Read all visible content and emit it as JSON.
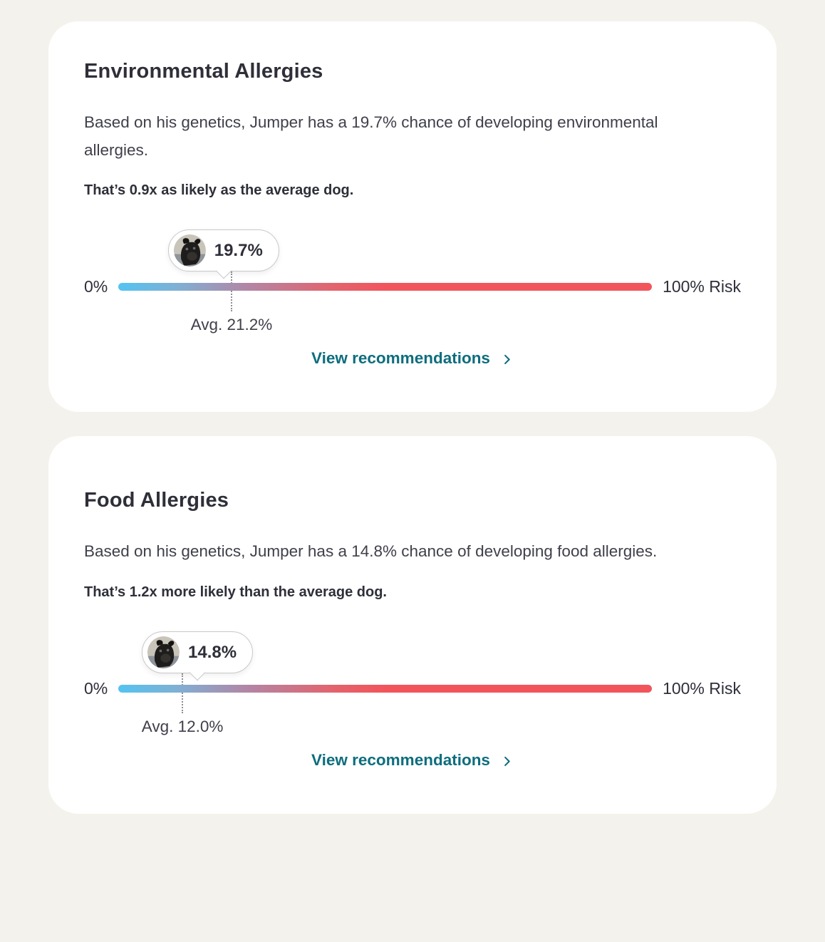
{
  "page_background": "#f4f2ec",
  "colors": {
    "card_background": "#ffffff",
    "text_dark": "#2e2f39",
    "text_body": "#3f404a",
    "link_teal": "#0d6d7d",
    "bar_gradient_start": "#54c3f1",
    "bar_gradient_mid": "#b286a6",
    "bar_gradient_end": "#f2545c"
  },
  "cards": [
    {
      "title": "Environmental Allergies",
      "description": "Based on his genetics, Jumper has a 19.7% chance of developing environmental allergies.",
      "emphasis": "That’s 0.9x as likely as the average dog.",
      "risk_percent": 19.7,
      "risk_label": "19.7%",
      "avg_percent": 21.2,
      "avg_label": "Avg. 21.2%",
      "bar_min_label": "0%",
      "bar_max_label": "100% Risk",
      "link_label": "View recommendations"
    },
    {
      "title": "Food Allergies",
      "description": "Based on his genetics, Jumper has a 14.8% chance of developing food allergies.",
      "emphasis": "That’s 1.2x more likely than the average dog.",
      "risk_percent": 14.8,
      "risk_label": "14.8%",
      "avg_percent": 12.0,
      "avg_label": "Avg. 12.0%",
      "bar_min_label": "0%",
      "bar_max_label": "100% Risk",
      "link_label": "View recommendations"
    }
  ]
}
